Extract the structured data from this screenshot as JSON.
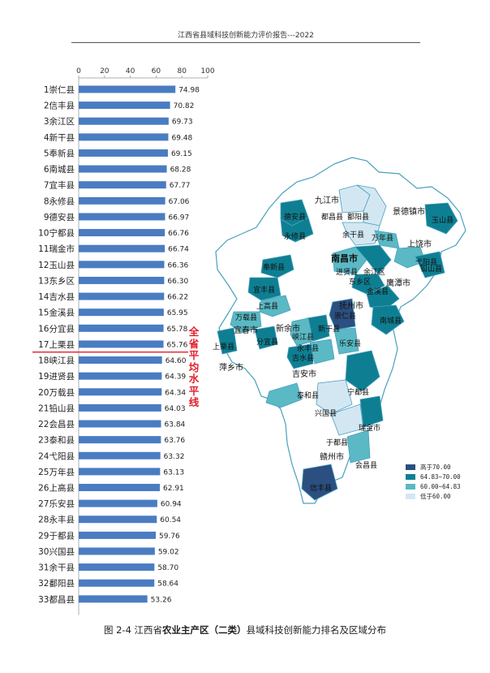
{
  "header": "江西省县域科技创新能力评价报告---2022",
  "chart_data": {
    "type": "bar",
    "orientation": "horizontal",
    "categories": [
      "1崇仁县",
      "2信丰县",
      "3余江区",
      "4新干县",
      "5奉新县",
      "6南城县",
      "7宜丰县",
      "8永修县",
      "9德安县",
      "10宁都县",
      "11瑞金市",
      "12玉山县",
      "13东乡区",
      "14吉水县",
      "15金溪县",
      "16分宜县",
      "17上栗县",
      "18峡江县",
      "19进贤县",
      "20万载县",
      "21铅山县",
      "22会昌县",
      "23泰和县",
      "24弋阳县",
      "25万年县",
      "26上高县",
      "27乐安县",
      "28永丰县",
      "29于都县",
      "30兴国县",
      "31余干县",
      "32鄱阳县",
      "33都昌县"
    ],
    "values": [
      74.98,
      70.82,
      69.73,
      69.48,
      69.15,
      68.28,
      67.77,
      67.06,
      66.97,
      66.76,
      66.74,
      66.36,
      66.3,
      66.22,
      65.95,
      65.78,
      65.76,
      64.6,
      64.39,
      64.34,
      64.03,
      63.84,
      63.76,
      63.32,
      63.13,
      62.91,
      60.94,
      60.54,
      59.76,
      59.02,
      58.7,
      58.64,
      53.26
    ],
    "value_labels": [
      "74.98",
      "70.82",
      "69.73",
      "69.48",
      "69.15",
      "68.28",
      "67.77",
      "67.06",
      "66.97",
      "66.76",
      "66.74",
      "66.36",
      "66.30",
      "66.22",
      "65.95",
      "65.78",
      "65.76",
      "64.60",
      "64.39",
      "64.34",
      "64.03",
      "63.84",
      "63.76",
      "63.32",
      "63.13",
      "62.91",
      "60.94",
      "60.54",
      "59.76",
      "59.02",
      "58.70",
      "58.64",
      "53.26"
    ],
    "xlim": [
      0,
      100
    ],
    "xticks": [
      "0",
      "20",
      "40",
      "60",
      "80",
      "100"
    ],
    "average_line_after_rank": 17,
    "average_label": "全省平均水平线",
    "bar_color": "#4a7cc2",
    "average_line_color": "#e0202a"
  },
  "map": {
    "cities": [
      "九江市",
      "景德镇市",
      "南昌市",
      "上饶市",
      "鹰潭市",
      "抚州市",
      "新余市",
      "宜春市",
      "萍乡市",
      "吉安市",
      "赣州市"
    ],
    "counties": [
      "德安县",
      "都昌县",
      "鄱阳县",
      "永修县",
      "余干县",
      "万年县",
      "玉山县",
      "奉新县",
      "进贤县",
      "余江区",
      "弋阳县",
      "铅山县",
      "东乡区",
      "金溪县",
      "宜丰县",
      "上高县",
      "万载县",
      "崇仁县",
      "南城县",
      "新干县",
      "峡江县",
      "分宜县",
      "上栗县",
      "永丰县",
      "乐安县",
      "吉水县",
      "泰和县",
      "宁都县",
      "兴国县",
      "瑞金市",
      "于都县",
      "会昌县",
      "信丰县"
    ],
    "colors": {
      "high": "#2b4f80",
      "upper": "#0e7f92",
      "mid": "#5ab9c4",
      "low": "#d3e7f3",
      "base": "#ffffff",
      "border": "#4aa0bf"
    }
  },
  "legend": [
    {
      "label": "高于70.00",
      "color": "#2b4f80"
    },
    {
      "label": "64.83~70.00",
      "color": "#0e7f92"
    },
    {
      "label": "60.00~64.83",
      "color": "#5ab9c4"
    },
    {
      "label": "低于60.00",
      "color": "#d3e7f3"
    }
  ],
  "caption": {
    "prefix": "图 2-4  江西省",
    "bold": "农业主产区（二类）",
    "suffix": "县域科技创新能力排名及区域分布"
  }
}
